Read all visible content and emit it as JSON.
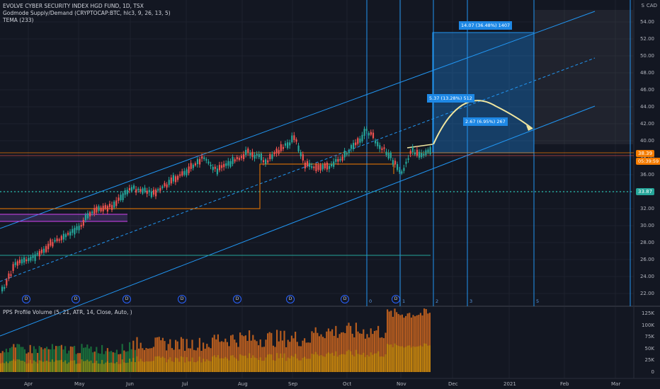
{
  "legend": {
    "title": "EVOLVE CYBER SECURITY INDEX HGD FUND, 1D, TSX",
    "indicator1": "Godmode Supply/Demand (CRYPTOCAP:BTC, hlc3, 9, 26, 13, 5)",
    "indicator2": "TEMA (233)",
    "volume_indicator": "PPS Profile Volume (5, 21, ATR, 14, Close, Auto, )"
  },
  "currency": "CAD",
  "scale_mode": "S",
  "price_axis": [
    "54.00",
    "52.00",
    "50.00",
    "48.00",
    "46.00",
    "44.00",
    "42.00",
    "40.00",
    "38.00",
    "36.00",
    "34.00",
    "32.00",
    "30.00",
    "28.00",
    "26.00",
    "24.00",
    "22.00"
  ],
  "volume_axis": [
    "125K",
    "100K",
    "75K",
    "50K",
    "25K",
    "0"
  ],
  "time_axis": [
    "Apr",
    "May",
    "Jun",
    "Jul",
    "Aug",
    "Sep",
    "Oct",
    "Nov",
    "Dec",
    "2021",
    "Feb",
    "Mar"
  ],
  "tags": {
    "last_price": "38.39",
    "countdown": "05:39:59",
    "support": "33.87"
  },
  "measure_labels": {
    "top": "14.07 (36.48%) 1407",
    "mid": "5.37 (13.28%) 512",
    "low": "2.67 (6.95%) 267"
  },
  "fib_numbers": [
    "0",
    "1",
    "2",
    "3",
    "5"
  ],
  "dividend_badge": "D",
  "colors": {
    "background": "#131722",
    "up": "#26a69a",
    "down": "#ef5350",
    "channel": "#2196f3",
    "support": "#26a69a",
    "last": "#f57c00"
  }
}
